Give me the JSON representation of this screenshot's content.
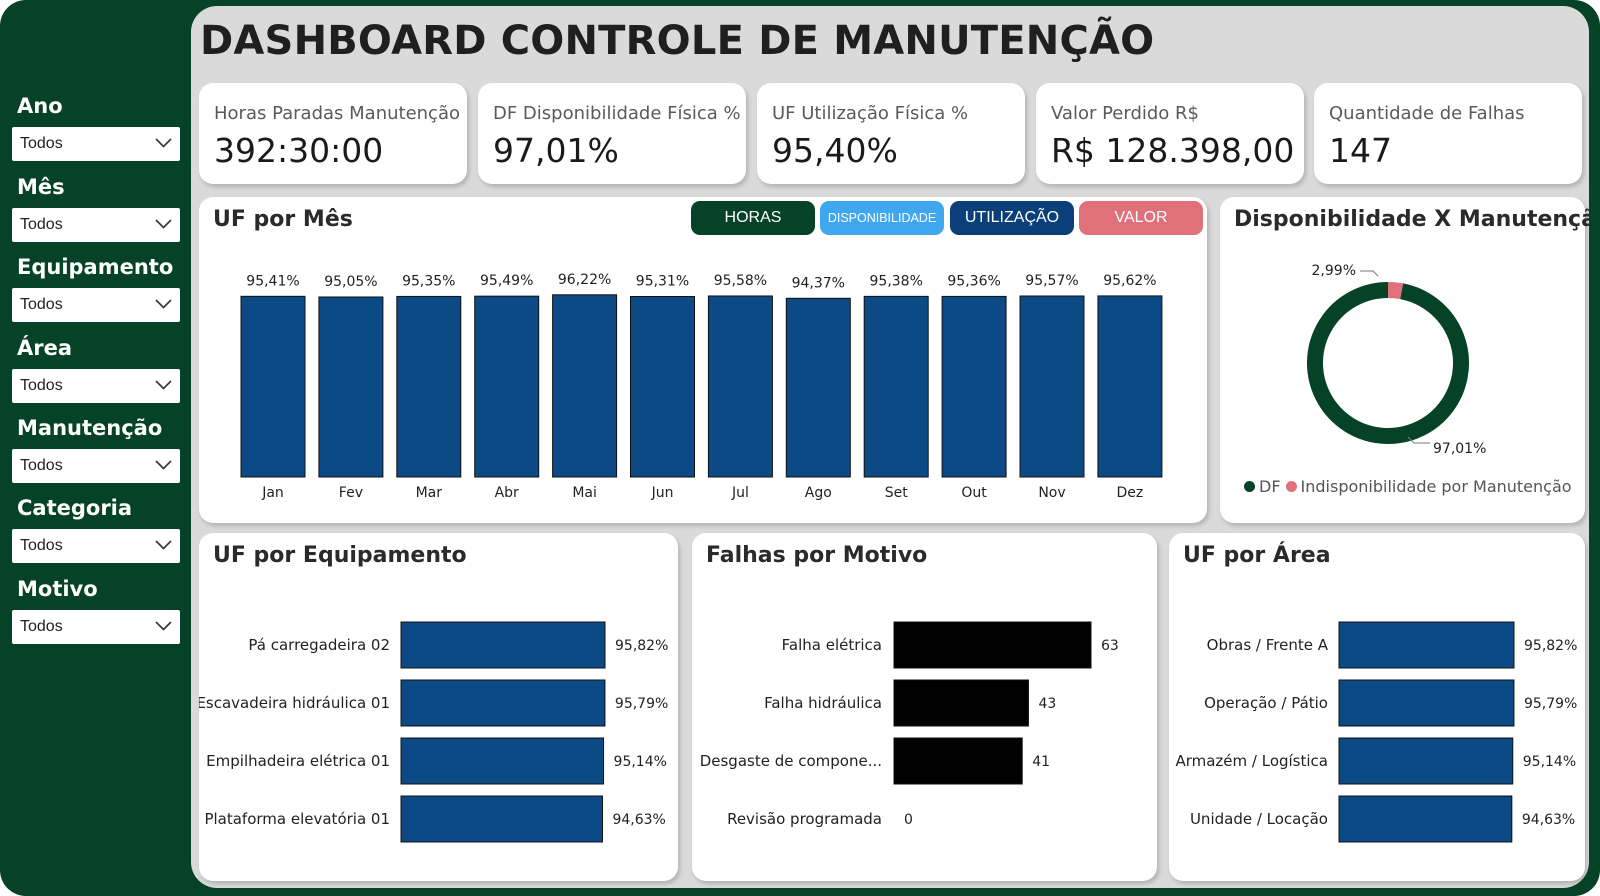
{
  "title": "DASHBOARD CONTROLE DE MANUTENÇÃO",
  "colors": {
    "brand_green": "#054227",
    "bar_blue": "#0b4a85",
    "black": "#000000",
    "light_blue": "#3fa7f0",
    "dark_blue": "#0b3f7a",
    "red": "#e0707a"
  },
  "filters": [
    {
      "label": "Ano",
      "value": "Todos",
      "icon": "chevron-down-icon"
    },
    {
      "label": "Mês",
      "value": "Todos",
      "icon": "chevron-down-icon"
    },
    {
      "label": "Equipamento",
      "value": "Todos",
      "icon": "chevron-down-icon"
    },
    {
      "label": "Área",
      "value": "Todos",
      "icon": "chevron-down-icon"
    },
    {
      "label": "Manutenção",
      "value": "Todos",
      "icon": "chevron-down-icon"
    },
    {
      "label": "Categoria",
      "value": "Todos",
      "icon": "chevron-down-icon"
    },
    {
      "label": "Motivo",
      "value": "Todos",
      "icon": "chevron-down-icon"
    }
  ],
  "kpis": [
    {
      "label": "Horas Paradas Manutenção",
      "value": "392:30:00"
    },
    {
      "label": "DF Disponibilidade Física %",
      "value": "97,01%"
    },
    {
      "label": "UF Utilização Física %",
      "value": "95,40%"
    },
    {
      "label": "Valor Perdido R$",
      "value": "R$ 128.398,00"
    },
    {
      "label": "Quantidade de Falhas",
      "value": "147"
    }
  ],
  "toggle_buttons": [
    {
      "label": "HORAS",
      "color": "#054227"
    },
    {
      "label": "DISPONIBILIDADE",
      "color": "#3fa7f0"
    },
    {
      "label": "UTILIZAÇÃO",
      "color": "#0b3f7a"
    },
    {
      "label": "VALOR",
      "color": "#e0707a"
    }
  ],
  "chart_data": [
    {
      "id": "uf_por_mes",
      "type": "bar",
      "title": "UF por Mês",
      "categories": [
        "Jan",
        "Fev",
        "Mar",
        "Abr",
        "Mai",
        "Jun",
        "Jul",
        "Ago",
        "Set",
        "Out",
        "Nov",
        "Dez"
      ],
      "values": [
        95.41,
        95.05,
        95.35,
        95.49,
        96.22,
        95.31,
        95.58,
        94.37,
        95.38,
        95.36,
        95.57,
        95.62
      ],
      "value_labels": [
        "95,41%",
        "95,05%",
        "95,35%",
        "95,49%",
        "96,22%",
        "95,31%",
        "95,58%",
        "94,37%",
        "95,38%",
        "95,36%",
        "95,57%",
        "95,62%"
      ],
      "color": "#0b4a85"
    },
    {
      "id": "disp_x_manut",
      "type": "pie",
      "title": "Disponibilidade X Manutenção",
      "labels": [
        "DF",
        "Indisponibilidade por Manutenção"
      ],
      "values": [
        97.01,
        2.99
      ],
      "value_labels": [
        "97,01%",
        "2,99%"
      ],
      "colors": [
        "#054227",
        "#e0707a"
      ]
    },
    {
      "id": "uf_por_equipamento",
      "type": "bar",
      "orientation": "horizontal",
      "title": "UF por Equipamento",
      "categories": [
        "Pá carregadeira 02",
        "Escavadeira hidráulica 01",
        "Empilhadeira elétrica 01",
        "Plataforma elevatória 01"
      ],
      "values": [
        95.82,
        95.79,
        95.14,
        94.63
      ],
      "value_labels": [
        "95,82%",
        "95,79%",
        "95,14%",
        "94,63%"
      ],
      "color": "#0b4a85"
    },
    {
      "id": "falhas_por_motivo",
      "type": "bar",
      "orientation": "horizontal",
      "title": "Falhas por Motivo",
      "categories": [
        "Falha elétrica",
        "Falha hidráulica",
        "Desgaste de compone...",
        "Revisão programada"
      ],
      "values": [
        63,
        43,
        41,
        0
      ],
      "value_labels": [
        "63",
        "43",
        "41",
        "0"
      ],
      "color": "#000000"
    },
    {
      "id": "uf_por_area",
      "type": "bar",
      "orientation": "horizontal",
      "title": "UF por Área",
      "categories": [
        "Obras / Frente A",
        "Operação / Pátio",
        "Armazém / Logística",
        "Unidade / Locação"
      ],
      "values": [
        95.82,
        95.79,
        95.14,
        94.63
      ],
      "value_labels": [
        "95,82%",
        "95,79%",
        "95,14%",
        "94,63%"
      ],
      "color": "#0b4a85"
    }
  ]
}
